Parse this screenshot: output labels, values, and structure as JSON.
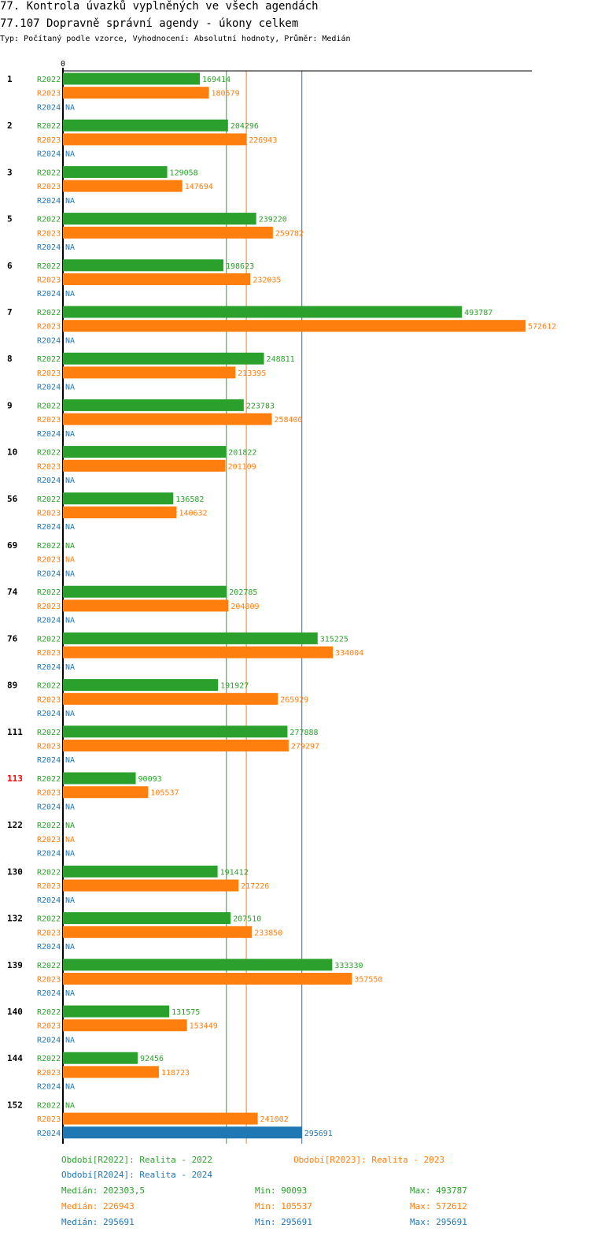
{
  "header": {
    "title": "77. Kontrola úvazků vyplněných ve všech agendách",
    "subtitle": "77.107 Dopravně správní agendy - úkony celkem",
    "type_line": "Typ: Počítaný podle vzorce, Vyhodnocení: Absolutní hodnoty, Průměr: Medián"
  },
  "chart_data": {
    "type": "bar",
    "orientation": "horizontal",
    "axis_zero_label": "0",
    "xlim": [
      0,
      590000
    ],
    "na_label": "NA",
    "series": [
      {
        "name": "R2022",
        "color": "#2ca02c"
      },
      {
        "name": "R2023",
        "color": "#ff7f0e"
      },
      {
        "name": "R2024",
        "color": "#1f77b4"
      }
    ],
    "groups": [
      {
        "label": "1",
        "highlight": false,
        "values": [
          169414,
          180579,
          null
        ]
      },
      {
        "label": "2",
        "highlight": false,
        "values": [
          204296,
          226943,
          null
        ]
      },
      {
        "label": "3",
        "highlight": false,
        "values": [
          129058,
          147694,
          null
        ]
      },
      {
        "label": "5",
        "highlight": false,
        "values": [
          239220,
          259782,
          null
        ]
      },
      {
        "label": "6",
        "highlight": false,
        "values": [
          198623,
          232035,
          null
        ]
      },
      {
        "label": "7",
        "highlight": false,
        "values": [
          493787,
          572612,
          null
        ]
      },
      {
        "label": "8",
        "highlight": false,
        "values": [
          248811,
          213395,
          null
        ]
      },
      {
        "label": "9",
        "highlight": false,
        "values": [
          223783,
          258400,
          null
        ]
      },
      {
        "label": "10",
        "highlight": false,
        "values": [
          201822,
          201109,
          null
        ]
      },
      {
        "label": "56",
        "highlight": false,
        "values": [
          136582,
          140632,
          null
        ]
      },
      {
        "label": "69",
        "highlight": false,
        "values": [
          null,
          null,
          null
        ]
      },
      {
        "label": "74",
        "highlight": false,
        "values": [
          202785,
          204809,
          null
        ]
      },
      {
        "label": "76",
        "highlight": false,
        "values": [
          315225,
          334004,
          null
        ]
      },
      {
        "label": "89",
        "highlight": false,
        "values": [
          191927,
          265929,
          null
        ]
      },
      {
        "label": "111",
        "highlight": false,
        "values": [
          277888,
          279297,
          null
        ]
      },
      {
        "label": "113",
        "highlight": true,
        "values": [
          90093,
          105537,
          null
        ]
      },
      {
        "label": "122",
        "highlight": false,
        "values": [
          null,
          null,
          null
        ]
      },
      {
        "label": "130",
        "highlight": false,
        "values": [
          191412,
          217226,
          null
        ]
      },
      {
        "label": "132",
        "highlight": false,
        "values": [
          207510,
          233850,
          null
        ]
      },
      {
        "label": "139",
        "highlight": false,
        "values": [
          333330,
          357550,
          null
        ]
      },
      {
        "label": "140",
        "highlight": false,
        "values": [
          131575,
          153449,
          null
        ]
      },
      {
        "label": "144",
        "highlight": false,
        "values": [
          92456,
          118723,
          null
        ]
      },
      {
        "label": "152",
        "highlight": false,
        "values": [
          null,
          241002,
          295691
        ]
      }
    ],
    "reference_lines": [
      {
        "series": "R2022",
        "value": 202303.5
      },
      {
        "series": "R2023",
        "value": 226943
      },
      {
        "series": "R2024",
        "value": 295691
      }
    ],
    "highlight_color": "#ff0000"
  },
  "legend": {
    "entries": [
      {
        "text": "Období[R2022]: Realita - 2022",
        "color": "#2ca02c"
      },
      {
        "text": "Období[R2023]: Realita - 2023",
        "color": "#ff7f0e"
      },
      {
        "text": "Období[R2024]: Realita - 2024",
        "color": "#1f77b4"
      }
    ],
    "stats": [
      {
        "median": "Medián: 202303,5",
        "min": "Min: 90093",
        "max": "Max: 493787",
        "color": "#2ca02c"
      },
      {
        "median": "Medián: 226943",
        "min": "Min: 105537",
        "max": "Max: 572612",
        "color": "#ff7f0e"
      },
      {
        "median": "Medián: 295691",
        "min": "Min: 295691",
        "max": "Max: 295691",
        "color": "#1f77b4"
      }
    ]
  }
}
